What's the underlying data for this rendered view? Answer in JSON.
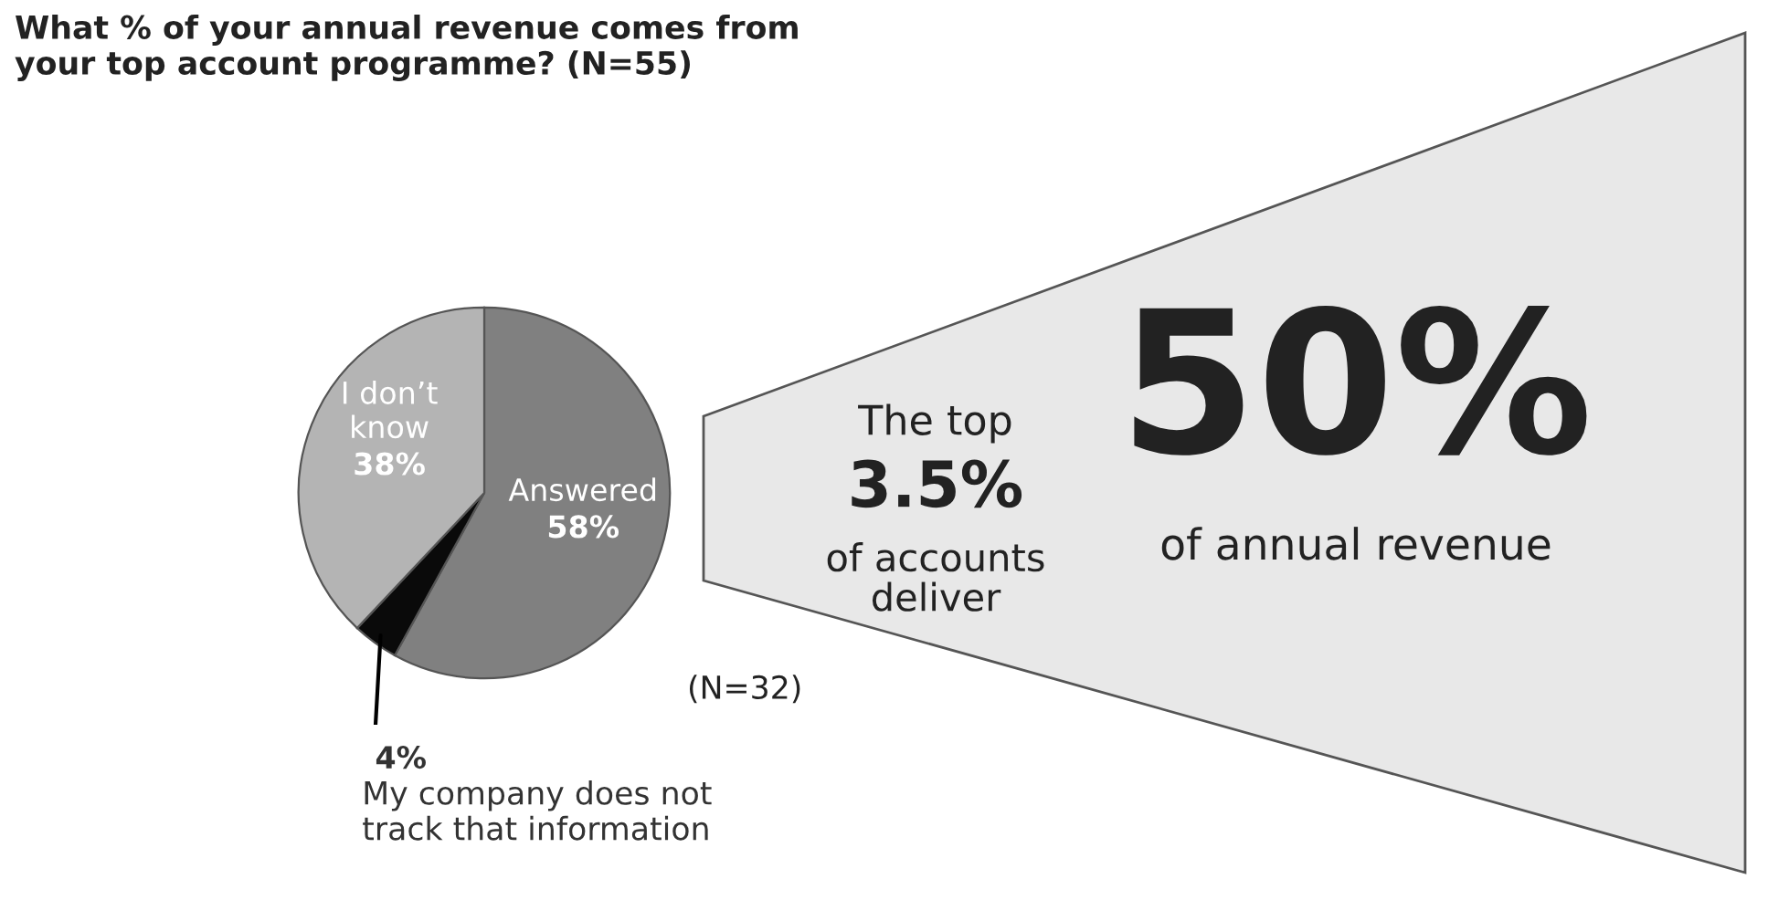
{
  "chart_data": {
    "type": "pie",
    "title": "What % of your annual revenue comes from\nyour top account programme? (N=55)",
    "categories": [
      "Answered",
      "My company does not\ntrack that information",
      "I don’t\nknow"
    ],
    "values": [
      58,
      4,
      38
    ],
    "value_labels": [
      "58%",
      "4%",
      "38%"
    ],
    "colors": [
      "#808080",
      "#0a0a0a",
      "#b4b4b4"
    ],
    "annotations": [
      "The top",
      "3.5%",
      "of accounts\ndeliver",
      "50%",
      "of annual revenue",
      "(N=32)"
    ]
  }
}
